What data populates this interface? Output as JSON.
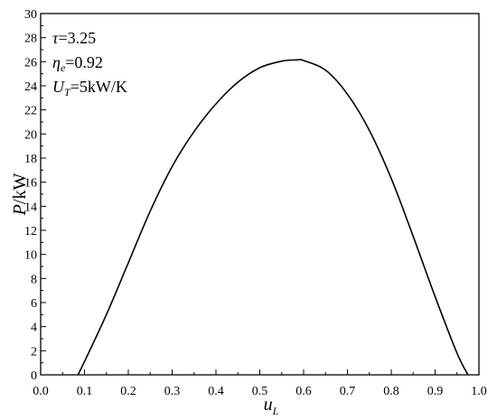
{
  "chart_data": {
    "type": "line",
    "title": "",
    "xlabel": {
      "main": "u",
      "sub": "L"
    },
    "ylabel": {
      "main": "P",
      "rest": "/kW"
    },
    "xlim": [
      0.0,
      1.0
    ],
    "ylim": [
      0,
      30
    ],
    "xticks": [
      0.0,
      0.1,
      0.2,
      0.3,
      0.4,
      0.5,
      0.6,
      0.7,
      0.8,
      0.9,
      1.0
    ],
    "xtick_labels": [
      "0.0",
      "0.1",
      "0.2",
      "0.3",
      "0.4",
      "0.5",
      "0.6",
      "0.7",
      "0.8",
      "0.9",
      "1.0"
    ],
    "yticks": [
      0,
      2,
      4,
      6,
      8,
      10,
      12,
      14,
      16,
      18,
      20,
      22,
      24,
      26,
      28,
      30
    ],
    "ytick_labels": [
      "0",
      "2",
      "4",
      "6",
      "8",
      "10",
      "12",
      "14",
      "16",
      "18",
      "20",
      "22",
      "24",
      "26",
      "28",
      "30"
    ],
    "grid": false,
    "series": [
      {
        "x": [
          0.085,
          0.1,
          0.15,
          0.2,
          0.25,
          0.3,
          0.35,
          0.4,
          0.45,
          0.5,
          0.55,
          0.585,
          0.6,
          0.65,
          0.7,
          0.75,
          0.8,
          0.85,
          0.9,
          0.95,
          0.975
        ],
        "y": [
          0,
          1.1,
          5.0,
          9.3,
          13.6,
          17.3,
          20.2,
          22.5,
          24.3,
          25.5,
          26.05,
          26.15,
          26.1,
          25.3,
          23.3,
          20.3,
          16.3,
          11.5,
          6.5,
          1.8,
          0
        ]
      }
    ],
    "annotations": [
      {
        "symbol": "τ",
        "sub": "",
        "text": "=3.25"
      },
      {
        "symbol": "η",
        "sub": "e",
        "text": "=0.92"
      },
      {
        "symbol": "U",
        "sub": "T",
        "text": "=5kW/K"
      }
    ]
  }
}
